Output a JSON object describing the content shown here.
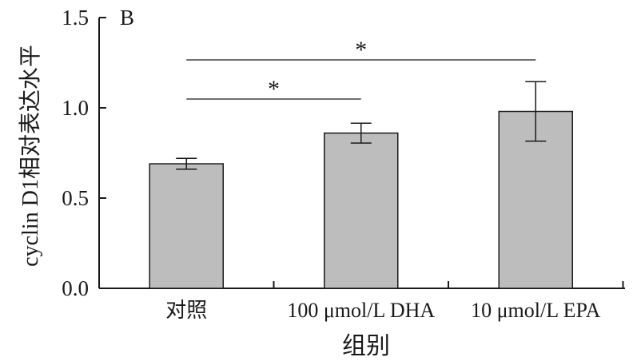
{
  "chart_data": {
    "type": "bar",
    "panel_label": "B",
    "categories": [
      "对照",
      "100 μmol/L DHA",
      "10 μmol/L EPA"
    ],
    "values": [
      0.69,
      0.86,
      0.98
    ],
    "errors": [
      0.03,
      0.055,
      0.165
    ],
    "ylabel": "cyclin D1相对表达水平",
    "xlabel": "组别",
    "ylim": [
      0,
      1.5
    ],
    "yticks": [
      "0.0",
      "0.5",
      "1.0",
      "1.5"
    ],
    "grid": false,
    "bar_color": "#bdbdbd",
    "significance": [
      {
        "from": 0,
        "to": 1,
        "label": "*"
      },
      {
        "from": 0,
        "to": 2,
        "label": "*"
      }
    ]
  }
}
